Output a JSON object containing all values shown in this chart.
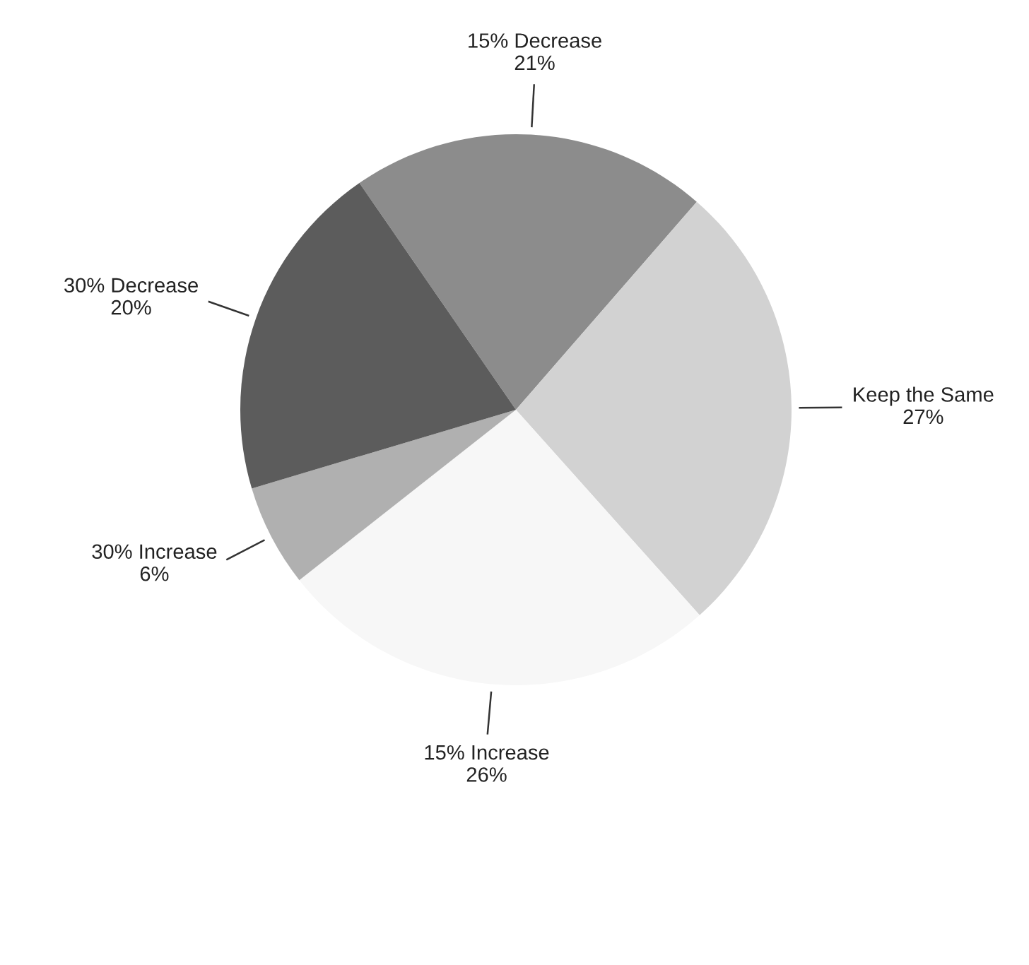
{
  "chart_data": {
    "type": "pie",
    "categories": [
      "15% Decrease",
      "Keep the Same",
      "15% Increase",
      "30% Increase",
      "30% Decrease"
    ],
    "values": [
      21,
      27,
      26,
      6,
      20
    ],
    "value_labels": [
      "21%",
      "27%",
      "26%",
      "6%",
      "20%"
    ],
    "colors": [
      "#8c8c8c",
      "#d2d2d2",
      "#f7f7f7",
      "#b0b0b0",
      "#5c5c5c"
    ]
  }
}
